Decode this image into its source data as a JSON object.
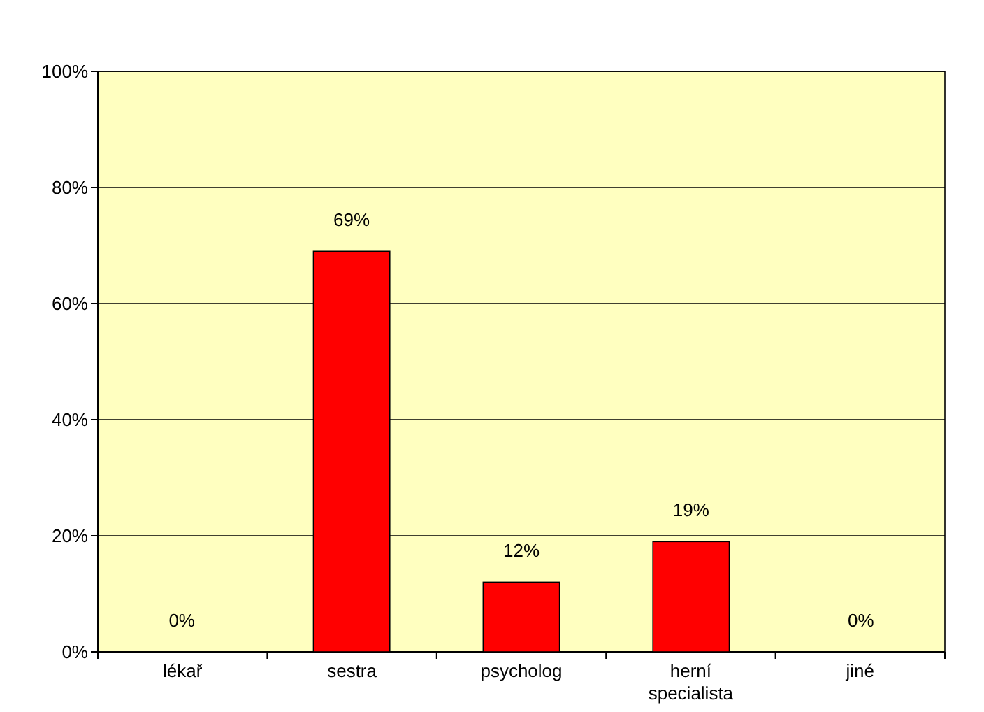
{
  "chart_data": {
    "type": "bar",
    "categories": [
      "lékař",
      "sestra",
      "psycholog",
      "herní specialista",
      "jiné"
    ],
    "values": [
      0,
      69,
      12,
      19,
      0
    ],
    "color": "#ff0000",
    "value_labels": [
      "0%",
      "69%",
      "12%",
      "19%",
      "0%"
    ],
    "ylim": [
      0,
      100
    ],
    "yticks": [
      {
        "value": 0,
        "label": "0%"
      },
      {
        "value": 20,
        "label": "20%"
      },
      {
        "value": 40,
        "label": "40%"
      },
      {
        "value": 60,
        "label": "60%"
      },
      {
        "value": 80,
        "label": "80%"
      },
      {
        "value": 100,
        "label": "100%"
      }
    ],
    "grid": "y"
  }
}
